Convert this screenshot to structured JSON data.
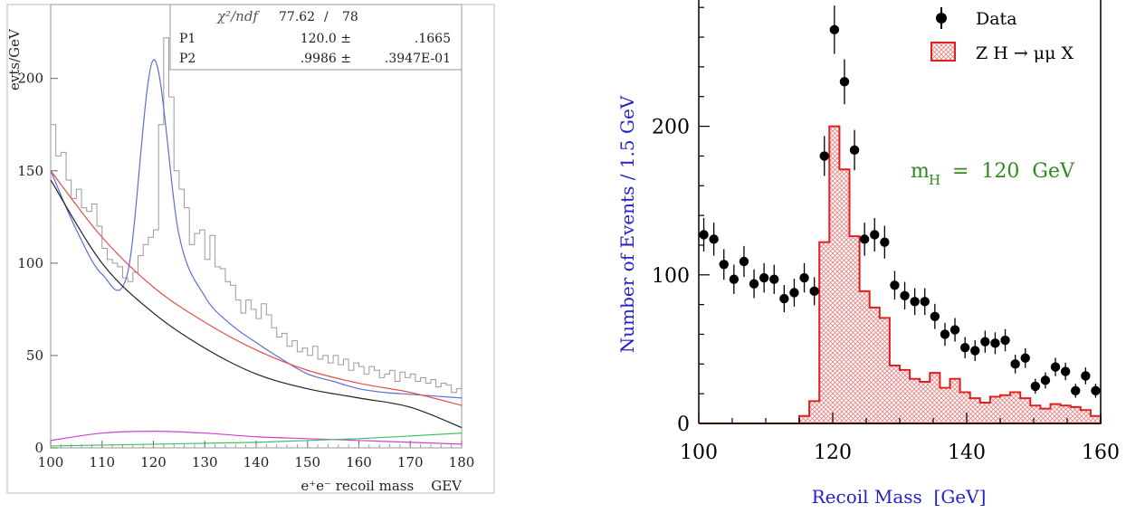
{
  "left_stats": {
    "chi_label": "χ²/ndf",
    "chi_value": "77.62",
    "chi_sep": "/",
    "chi_ndf": "78",
    "p1_label": "P1",
    "p1_value": "120.0 ±",
    "p1_err": ".1665",
    "p2_label": "P2",
    "p2_value": ".9986 ±",
    "p2_err": ".3947E-01"
  },
  "legend": {
    "data_label": "Data",
    "signal_label": "Z H → μμ X"
  },
  "annotation": {
    "mh_prefix": "m",
    "mh_sub": "H",
    "mh_value": "=  120  GeV"
  },
  "colors": {
    "fit_blue": "#5a6fd6",
    "bkg_red": "#e0504a",
    "bkg_black": "#222222",
    "magenta": "#d040d0",
    "green": "#40c060",
    "hist_grey": "#9a9a9a",
    "signal_red": "#e02020",
    "axis_title_blue": "#2222cc",
    "annotation_green": "#2e8b1e"
  },
  "chart_data": [
    {
      "type": "line",
      "title": "",
      "xlabel": "e⁺e⁻ recoil mass    GEV",
      "ylabel": "evts/GeV",
      "xlim": [
        100,
        180
      ],
      "ylim": [
        0,
        240
      ],
      "x_ticks": [
        100,
        110,
        120,
        130,
        140,
        150,
        160,
        170,
        180
      ],
      "y_ticks": [
        0,
        50,
        100,
        150,
        200
      ],
      "histogram": {
        "bin_width": 1,
        "x_start": 100,
        "values": [
          175,
          158,
          160,
          145,
          135,
          140,
          130,
          128,
          132,
          120,
          108,
          102,
          100,
          98,
          92,
          90,
          95,
          104,
          110,
          114,
          118,
          175,
          222,
          190,
          150,
          140,
          130,
          110,
          116,
          118,
          102,
          115,
          98,
          97,
          90,
          88,
          80,
          73,
          80,
          75,
          70,
          78,
          72,
          65,
          60,
          62,
          55,
          58,
          52,
          54,
          50,
          55,
          48,
          50,
          46,
          50,
          45,
          48,
          42,
          46,
          44,
          40,
          44,
          42,
          38,
          40,
          42,
          36,
          41,
          38,
          40,
          36,
          38,
          35,
          37,
          33,
          35,
          34,
          30,
          32
        ]
      },
      "series": [
        {
          "name": "",
          "x": [
            100,
            105,
            110,
            115,
            120,
            125,
            130,
            135,
            140,
            145,
            150,
            155,
            160,
            165,
            170,
            175,
            180
          ],
          "y": [
            150,
            118,
            94,
            95,
            210,
            115,
            82,
            67,
            57,
            48,
            40,
            36,
            32,
            30,
            29,
            28,
            27
          ]
        },
        {
          "name": "",
          "x": [
            100,
            110,
            120,
            130,
            140,
            150,
            160,
            170,
            180
          ],
          "y": [
            150,
            114,
            87,
            68,
            53,
            42,
            35,
            30,
            23
          ]
        },
        {
          "name": "",
          "x": [
            100,
            110,
            120,
            130,
            140,
            150,
            160,
            170,
            180
          ],
          "y": [
            145,
            100,
            73,
            54,
            40,
            32,
            27,
            22,
            11
          ]
        },
        {
          "name": "",
          "x": [
            100,
            110,
            120,
            130,
            140,
            150,
            160,
            170,
            180
          ],
          "y": [
            4,
            8,
            9,
            8,
            6,
            5,
            4,
            3,
            2
          ]
        },
        {
          "name": "",
          "x": [
            100,
            120,
            140,
            160,
            180
          ],
          "y": [
            1,
            2,
            3,
            5,
            8
          ]
        }
      ]
    },
    {
      "type": "scatter",
      "title": "",
      "xlabel": "Recoil Mass  [GeV]",
      "ylabel": "Number of Events / 1.5 GeV",
      "xlim": [
        100,
        160
      ],
      "ylim": [
        0,
        285
      ],
      "x_ticks": [
        100,
        120,
        140,
        160
      ],
      "y_ticks": [
        0,
        100,
        200
      ],
      "series": [
        {
          "name": "Data",
          "x": [
            100.75,
            102.25,
            103.75,
            105.25,
            106.75,
            108.25,
            109.75,
            111.25,
            112.75,
            114.25,
            115.75,
            117.25,
            118.75,
            120.25,
            121.75,
            123.25,
            124.75,
            126.25,
            127.75,
            129.25,
            130.75,
            132.25,
            133.75,
            135.25,
            136.75,
            138.25,
            139.75,
            141.25,
            142.75,
            144.25,
            145.75,
            147.25,
            148.75,
            150.25,
            151.75,
            153.25,
            154.75,
            156.25,
            157.75,
            159.25
          ],
          "y": [
            127,
            124,
            107,
            97,
            109,
            94,
            98,
            97,
            84,
            88,
            98,
            89,
            180,
            265,
            230,
            184,
            124,
            127,
            122,
            93,
            86,
            82,
            82,
            72,
            60,
            63,
            51,
            49,
            55,
            54,
            56,
            40,
            44,
            25,
            29,
            38,
            35,
            22,
            32,
            22
          ]
        },
        {
          "name": "Z H → μμ X",
          "bin_edges": [
            100,
            115,
            116.5,
            118,
            119.5,
            121,
            122.5,
            124,
            125.5,
            127,
            128.5,
            130,
            131.5,
            133,
            134.5,
            136,
            137.5,
            139,
            140.5,
            142,
            143.5,
            145,
            146.5,
            148,
            149.5,
            151,
            152.5,
            154,
            155.5,
            157,
            158.5,
            160
          ],
          "values": [
            0,
            5,
            15,
            122,
            200,
            171,
            126,
            89,
            78,
            71,
            39,
            36,
            30,
            28,
            34,
            24,
            30,
            21,
            17,
            14,
            18,
            19,
            21,
            17,
            12,
            10,
            13,
            12,
            11,
            9,
            5
          ]
        }
      ]
    }
  ]
}
